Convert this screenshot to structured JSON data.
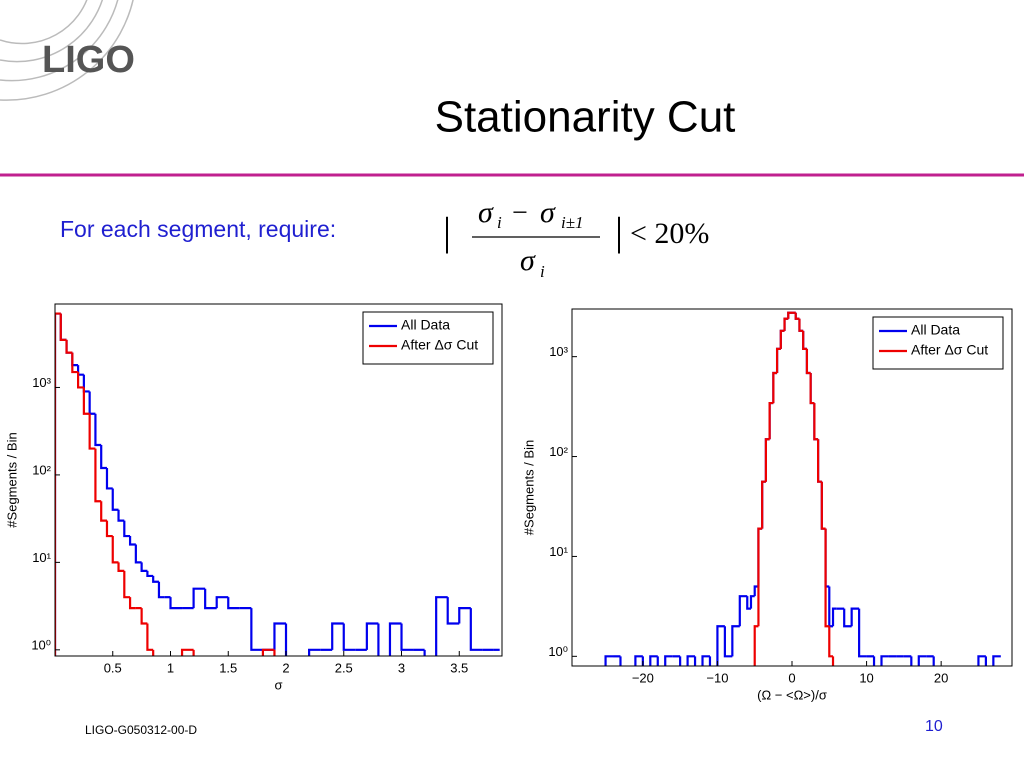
{
  "logo": "LIGO",
  "title": "Stationarity Cut",
  "lead": "For each segment, require:",
  "formula": {
    "num_a": "σ",
    "num_a_sub": "i",
    "minus": "−",
    "num_b": "σ",
    "num_b_sub": "i±1",
    "den": "σ",
    "den_sub": "i",
    "bar": "|",
    "rhs": "< 20%"
  },
  "footer": "LIGO-G050312-00-D",
  "page": "10",
  "chart_data": [
    {
      "type": "histogram",
      "xlabel": "σ",
      "ylabel": "#Segments / Bin",
      "log_y": true,
      "legend": "upper right",
      "xlim": [
        0,
        3.87
      ],
      "ylim": [
        0.85,
        9000
      ],
      "xticks": [
        0.5,
        1,
        1.5,
        2,
        2.5,
        3,
        3.5
      ],
      "yticks": [
        {
          "value": 1,
          "label": "10⁰"
        },
        {
          "value": 10,
          "label": "10¹"
        },
        {
          "value": 100,
          "label": "10²"
        },
        {
          "value": 1000,
          "label": "10³"
        }
      ],
      "bins": [
        0,
        0.05,
        0.1,
        0.15,
        0.2,
        0.25,
        0.3,
        0.35,
        0.4,
        0.45,
        0.5,
        0.55,
        0.6,
        0.65,
        0.7,
        0.75,
        0.8,
        0.85,
        0.9,
        0.95,
        1.0,
        1.1,
        1.2,
        1.3,
        1.4,
        1.5,
        1.6,
        1.7,
        1.8,
        1.9,
        2.0,
        2.1,
        2.2,
        2.3,
        2.4,
        2.5,
        2.6,
        2.7,
        2.8,
        2.9,
        3.0,
        3.1,
        3.2,
        3.3,
        3.4,
        3.5,
        3.6,
        3.7,
        3.8,
        3.85
      ],
      "series": [
        {
          "name": "All Data",
          "color": "#0000ee",
          "values": [
            7000,
            3500,
            2500,
            1800,
            1400,
            900,
            500,
            220,
            120,
            70,
            40,
            30,
            20,
            16,
            10,
            8,
            7,
            6,
            4,
            4,
            3,
            3,
            5,
            3,
            4,
            3,
            3,
            1,
            1,
            2,
            0,
            0,
            1,
            1,
            2,
            1,
            1,
            2,
            0,
            2,
            1,
            1,
            0,
            4,
            2,
            3,
            1,
            1,
            1
          ]
        },
        {
          "name": "After Δσ Cut",
          "color": "#ee0000",
          "values": [
            7000,
            3500,
            2500,
            1500,
            1000,
            500,
            200,
            50,
            30,
            20,
            10,
            8,
            4,
            3,
            3,
            2,
            1,
            0,
            0,
            0,
            0,
            1,
            0,
            0,
            0,
            0,
            0,
            0,
            1,
            0,
            0,
            0,
            0,
            0,
            0,
            0,
            0,
            0,
            0,
            0,
            0,
            0,
            0,
            0,
            0,
            0,
            0,
            0,
            0
          ]
        }
      ]
    },
    {
      "type": "histogram",
      "xlabel": "(Ω − <Ω>)/σ",
      "ylabel": "#Segments / Bin",
      "log_y": true,
      "legend": "upper right",
      "xlim": [
        -29.5,
        29.5
      ],
      "ylim": [
        0.8,
        3000
      ],
      "xticks": [
        {
          "value": -20,
          "label": "−20"
        },
        {
          "value": -10,
          "label": "−10"
        },
        0,
        10,
        20
      ],
      "yticks": [
        {
          "value": 1,
          "label": "10⁰"
        },
        {
          "value": 10,
          "label": "10¹"
        },
        {
          "value": 100,
          "label": "10²"
        },
        {
          "value": 1000,
          "label": "10³"
        }
      ],
      "bins": [
        -26,
        -25,
        -24,
        -23,
        -22,
        -21,
        -20,
        -19,
        -18,
        -17,
        -16,
        -15,
        -14,
        -13,
        -12,
        -11,
        -10,
        -9,
        -8,
        -7,
        -6,
        -5.5,
        -5,
        -4.5,
        -4,
        -3.5,
        -3,
        -2.5,
        -2,
        -1.5,
        -1,
        -0.5,
        0,
        0.5,
        1,
        1.5,
        2,
        2.5,
        3,
        3.5,
        4,
        4.5,
        5,
        5.5,
        6,
        7,
        8,
        9,
        10,
        11,
        12,
        13,
        14,
        15,
        16,
        17,
        18,
        19,
        20,
        21,
        22,
        23,
        24,
        25,
        26,
        27,
        28
      ],
      "series": [
        {
          "name": "All Data",
          "color": "#0000ee",
          "values": [
            0,
            1,
            1,
            0,
            0,
            1,
            0,
            1,
            0,
            1,
            1,
            0,
            1,
            0,
            1,
            0,
            2,
            1,
            2,
            4,
            3,
            4,
            5,
            19,
            56,
            149,
            343,
            686,
            1196,
            1814,
            2395,
            2752,
            2752,
            2395,
            1814,
            1196,
            686,
            343,
            149,
            56,
            19,
            5,
            2,
            3,
            3,
            2,
            3,
            1,
            1,
            0,
            1,
            1,
            1,
            1,
            0,
            1,
            1,
            0,
            0,
            0,
            0,
            0,
            0,
            1,
            0,
            1
          ]
        },
        {
          "name": "After Δσ Cut",
          "color": "#ee0000",
          "values": [
            0,
            0,
            0,
            0,
            0,
            0,
            0,
            0,
            0,
            0,
            0,
            0,
            0,
            0,
            0,
            0,
            0,
            0,
            0,
            0,
            0,
            0,
            2,
            19,
            56,
            149,
            343,
            686,
            1196,
            1814,
            2395,
            2752,
            2752,
            2395,
            1814,
            1196,
            686,
            343,
            149,
            56,
            19,
            2,
            1,
            0,
            0,
            0,
            0,
            0,
            0,
            0,
            0,
            0,
            0,
            0,
            0,
            0,
            0,
            0,
            0,
            0,
            0,
            0,
            0,
            0,
            0,
            0
          ]
        }
      ]
    }
  ]
}
